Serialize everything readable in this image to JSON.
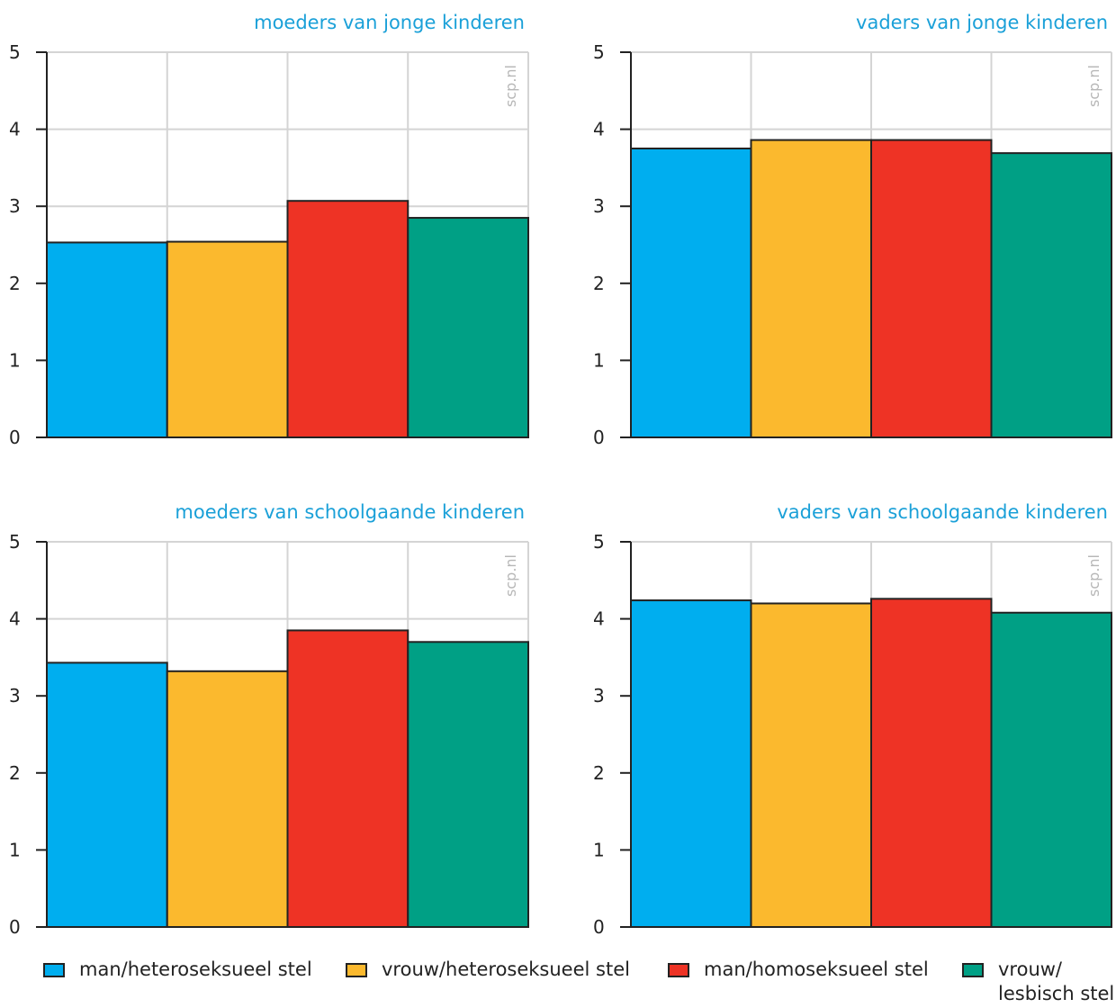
{
  "colors": {
    "title": "#1aa0d8",
    "watermark": "#b7b7b7",
    "grid": "#d4d4d4",
    "axis": "#222222",
    "series": [
      "#00aeef",
      "#fbb92e",
      "#ee3325",
      "#00a085"
    ]
  },
  "legend": [
    {
      "label": "man/heteroseksueel stel"
    },
    {
      "label": "vrouw/heteroseksueel stel"
    },
    {
      "label": "man/homoseksueel stel"
    },
    {
      "label": "vrouw/\nlesbisch stel"
    }
  ],
  "chart_data": [
    {
      "type": "bar",
      "title": "moeders van jonge kinderen",
      "watermark": "scp.nl",
      "categories": [
        "man/heteroseksueel stel",
        "vrouw/heteroseksueel stel",
        "man/homoseksueel stel",
        "vrouw/lesbisch stel"
      ],
      "values": [
        2.53,
        2.54,
        3.07,
        2.85
      ],
      "ylim": [
        0,
        5
      ],
      "yticks": [
        "0",
        "1",
        "2",
        "3",
        "4",
        "5"
      ],
      "grid": true
    },
    {
      "type": "bar",
      "title": "vaders van jonge kinderen",
      "watermark": "scp.nl",
      "categories": [
        "man/heteroseksueel stel",
        "vrouw/heteroseksueel stel",
        "man/homoseksueel stel",
        "vrouw/lesbisch stel"
      ],
      "values": [
        3.75,
        3.86,
        3.86,
        3.69
      ],
      "ylim": [
        0,
        5
      ],
      "yticks": [
        "0",
        "1",
        "2",
        "3",
        "4",
        "5"
      ],
      "grid": true
    },
    {
      "type": "bar",
      "title": "moeders van schoolgaande kinderen",
      "watermark": "scp.nl",
      "categories": [
        "man/heteroseksueel stel",
        "vrouw/heteroseksueel stel",
        "man/homoseksueel stel",
        "vrouw/lesbisch stel"
      ],
      "values": [
        3.43,
        3.32,
        3.85,
        3.7
      ],
      "ylim": [
        0,
        5
      ],
      "yticks": [
        "0",
        "1",
        "2",
        "3",
        "4",
        "5"
      ],
      "grid": true
    },
    {
      "type": "bar",
      "title": "vaders van schoolgaande kinderen",
      "watermark": "scp.nl",
      "categories": [
        "man/heteroseksueel stel",
        "vrouw/heteroseksueel stel",
        "man/homoseksueel stel",
        "vrouw/lesbisch stel"
      ],
      "values": [
        4.24,
        4.2,
        4.26,
        4.08
      ],
      "ylim": [
        0,
        5
      ],
      "yticks": [
        "0",
        "1",
        "2",
        "3",
        "4",
        "5"
      ],
      "grid": true
    }
  ]
}
